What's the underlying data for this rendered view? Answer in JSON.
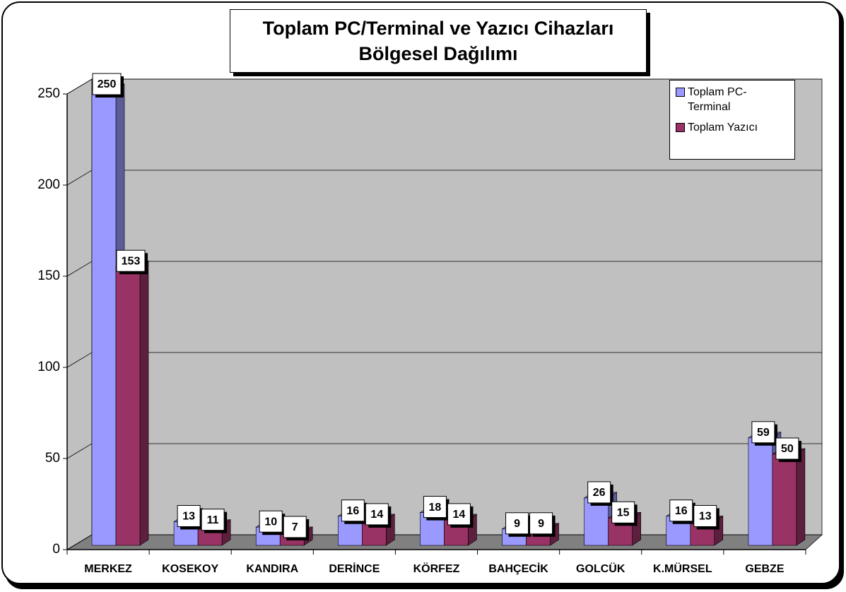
{
  "chart_data": {
    "type": "bar3d",
    "title": "Toplam PC/Terminal ve Yazıcı Cihazları Bölgesel Dağılımı",
    "categories": [
      "MERKEZ",
      "KOSEKOY",
      "KANDIRA",
      "DERİNCE",
      "KÖRFEZ",
      "BAHÇECİK",
      "GOLCÜK",
      "K.MÜRSEL",
      "GEBZE"
    ],
    "series": [
      {
        "name": "Toplam PC-Terminal",
        "color": "#9999ff",
        "values": [
          250,
          13,
          10,
          16,
          18,
          9,
          26,
          16,
          59
        ]
      },
      {
        "name": "Toplam Yazıcı",
        "color": "#993366",
        "values": [
          153,
          11,
          7,
          14,
          14,
          9,
          15,
          13,
          50
        ]
      }
    ],
    "ylim": [
      0,
      250
    ],
    "yticks": [
      0,
      50,
      100,
      150,
      200,
      250
    ],
    "grid": true,
    "legend": "top-right"
  }
}
